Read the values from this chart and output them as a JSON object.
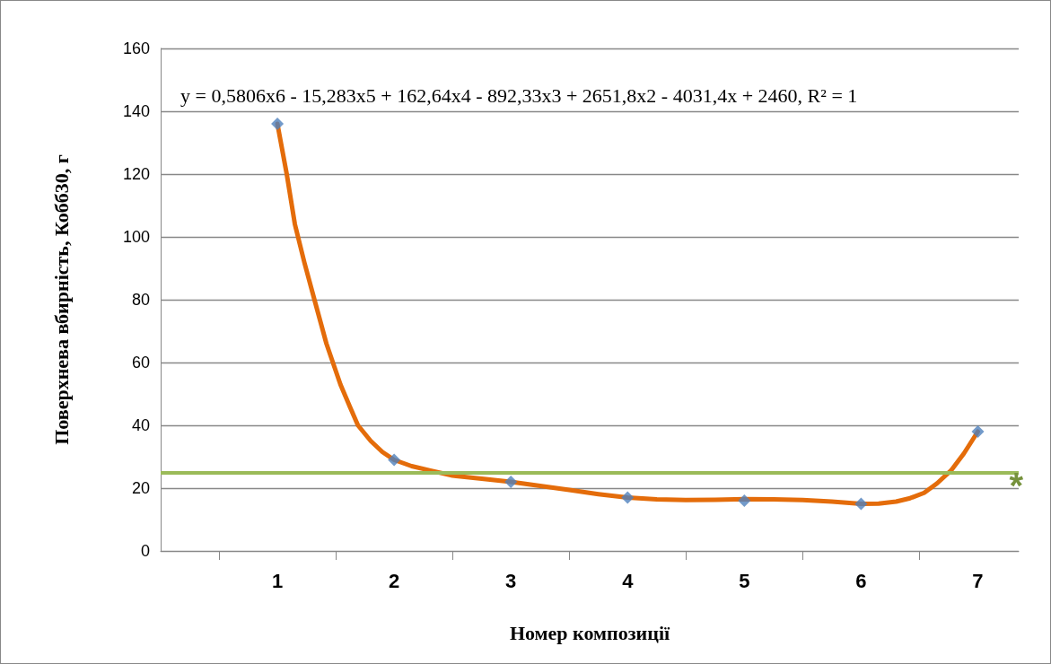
{
  "chart_data": {
    "type": "scatter",
    "xlabel": "Номер композиції",
    "ylabel": "Поверхнева вбирність, Кобб30, г",
    "x": [
      1,
      2,
      3,
      4,
      5,
      6,
      7
    ],
    "xlim": [
      0,
      7.35
    ],
    "xticks": [
      {
        "value": 0.5,
        "label": null
      },
      1,
      {
        "value": 1.5,
        "label": null
      },
      2,
      {
        "value": 2.5,
        "label": null
      },
      3,
      {
        "value": 3.5,
        "label": null
      },
      4,
      {
        "value": 4.5,
        "label": null
      },
      5,
      {
        "value": 5.5,
        "label": null
      },
      6,
      {
        "value": 6.5,
        "label": null
      },
      7
    ],
    "ylim": [
      0,
      160
    ],
    "yticks": [
      0,
      20,
      40,
      60,
      80,
      100,
      120,
      140,
      160
    ],
    "grid": "y",
    "series": [
      {
        "color": "#4f81bd",
        "marker": "diamond",
        "values": [
          136,
          29,
          22,
          17,
          16,
          15,
          38
        ]
      },
      {
        "type": "line",
        "color": "#e46c0a",
        "marker": "none",
        "line_style": "solid",
        "x": [
          1,
          1.08,
          1.15,
          1.23,
          1.31,
          1.42,
          1.54,
          1.62,
          1.69,
          1.8,
          1.9,
          2,
          2.15,
          2.31,
          2.5,
          2.75,
          3,
          3.25,
          3.5,
          3.75,
          4,
          4.25,
          4.5,
          4.75,
          5,
          5.25,
          5.5,
          5.75,
          6,
          6.15,
          6.3,
          6.42,
          6.54,
          6.65,
          6.77,
          6.88,
          7
        ],
        "values": [
          136,
          120,
          104,
          92,
          81,
          66,
          53,
          46,
          40,
          35,
          31.5,
          29,
          27,
          25.6,
          24,
          23,
          22,
          20.7,
          19.4,
          18.1,
          17,
          16.4,
          16.2,
          16.3,
          16.5,
          16.4,
          16.2,
          15.7,
          15,
          15.1,
          15.7,
          16.8,
          18.5,
          21.5,
          25.6,
          31,
          38
        ]
      }
    ],
    "ref_lines": [
      {
        "axis": "y",
        "value": 25,
        "label": null,
        "color": "#9bbb59",
        "line_style": "solid"
      }
    ],
    "annotations": [
      "y = 0,5806x6 - 15,283x5 + 162,64x4 - 892,33x3 + 2651,8x2 - 4031,4x + 2460, R² = 1",
      "*"
    ]
  }
}
